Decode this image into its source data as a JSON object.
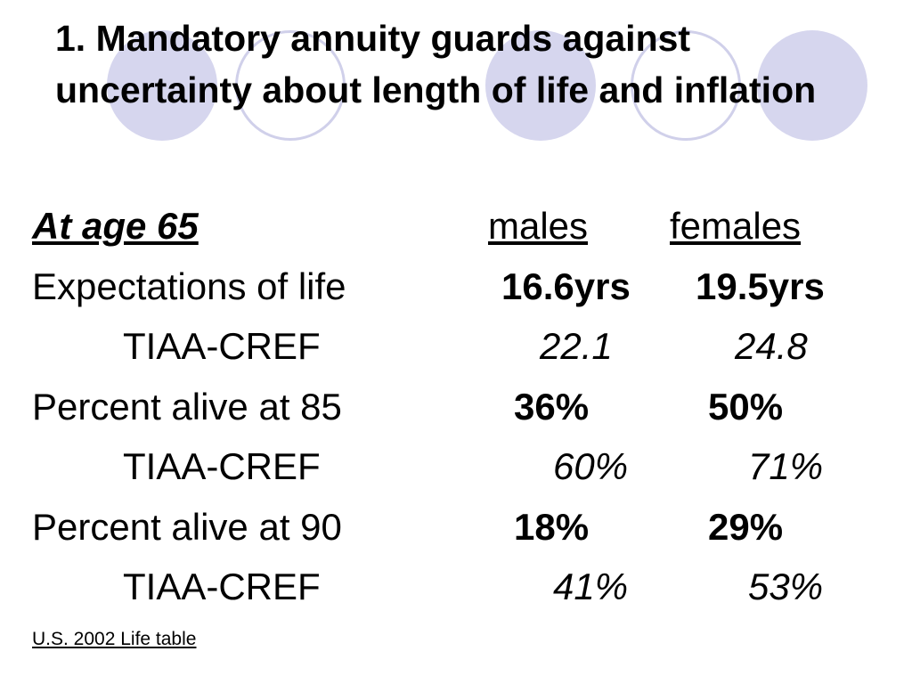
{
  "slide": {
    "title": "1. Mandatory annuity guards against uncertainty about length of life and inflation",
    "header": {
      "age_label": "At age 65",
      "col_males": "males",
      "col_females": "females"
    },
    "rows": [
      {
        "label": "Expectations of life",
        "males": "16.6yrs",
        "females": "19.5yrs"
      },
      {
        "label": "TIAA-CREF",
        "males": "22.1",
        "females": "24.8"
      },
      {
        "label": "Percent alive at 85",
        "males": "36%",
        "females": "50%"
      },
      {
        "label": "TIAA-CREF",
        "males": "60%",
        "females": "71%"
      },
      {
        "label": "Percent alive at 90",
        "males": "18%",
        "females": "29%"
      },
      {
        "label": "TIAA-CREF",
        "males": "41%",
        "females": "53%"
      }
    ],
    "source": "U.S. 2002 Life table"
  },
  "colors": {
    "circle_fill": "#d6d6ee",
    "circle_outline": "#d0d0ea"
  }
}
